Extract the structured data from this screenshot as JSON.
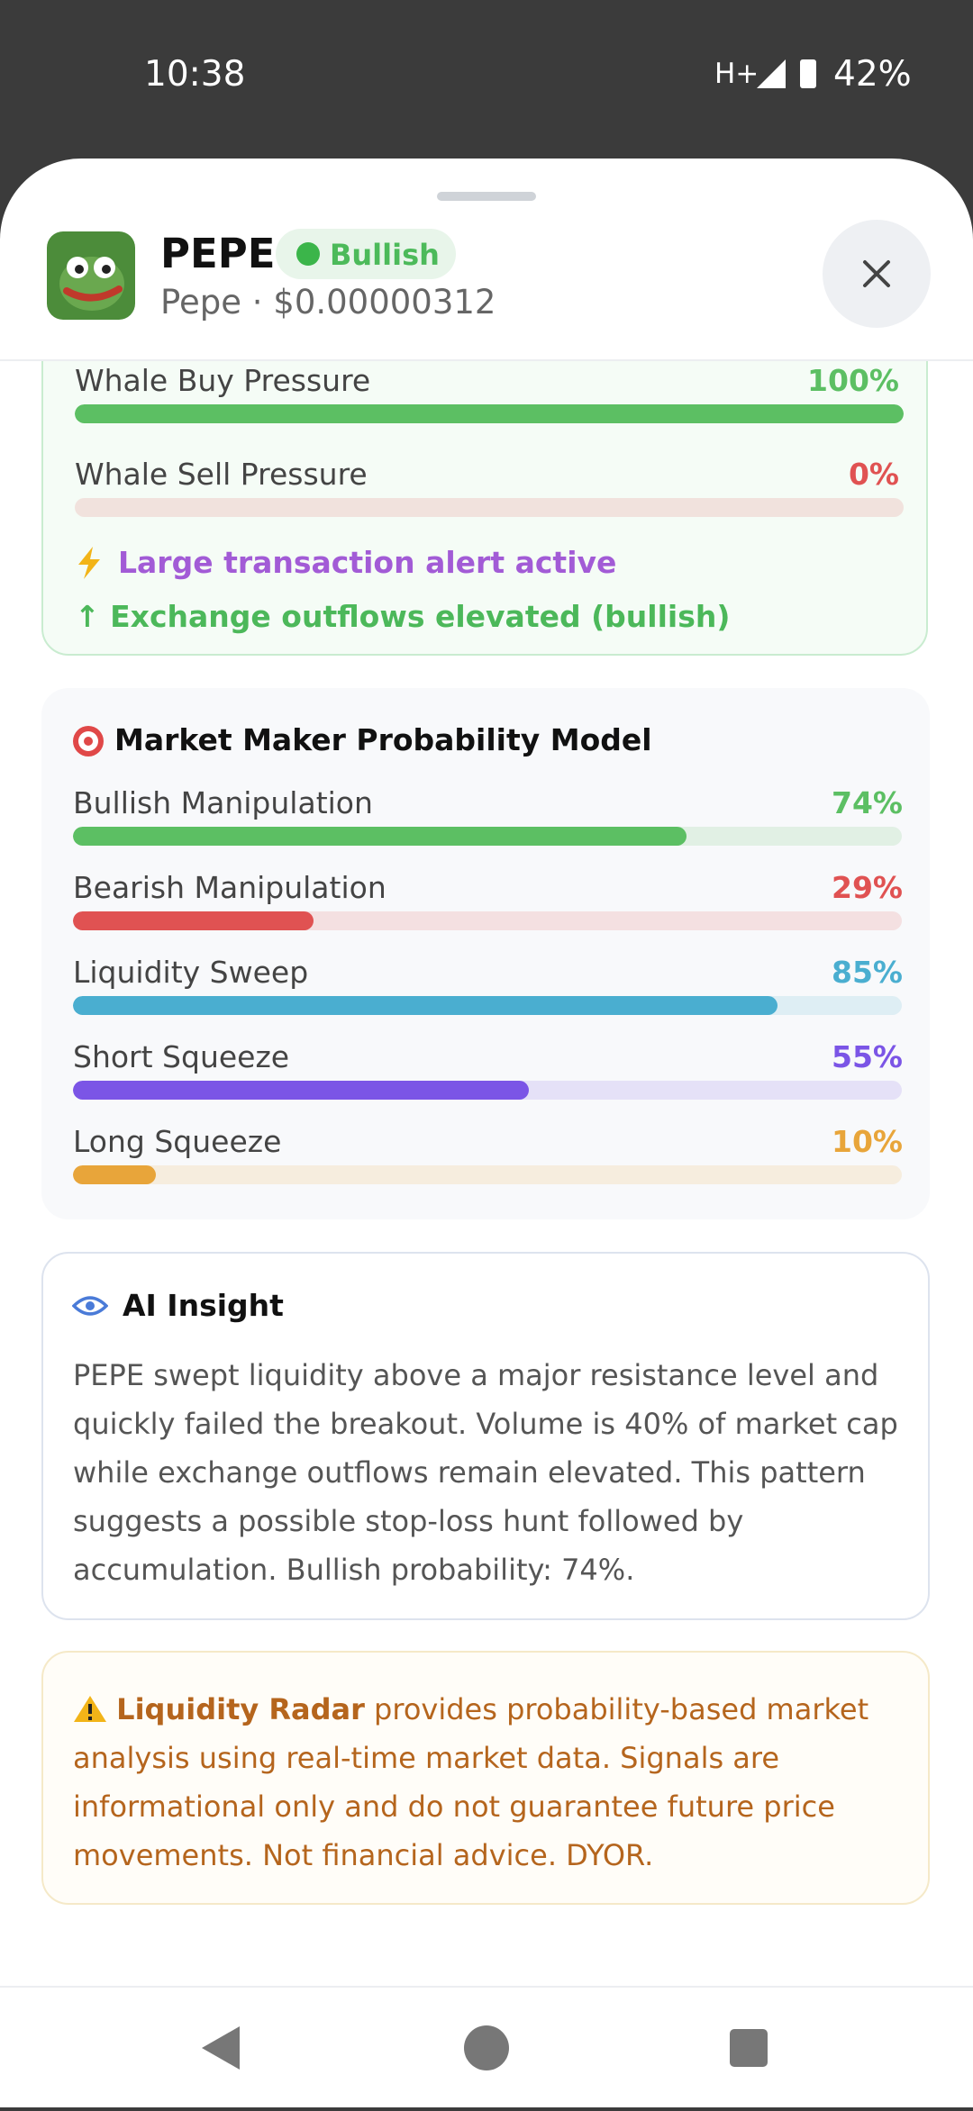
{
  "status_bar": {
    "time": "10:38",
    "network": "H+",
    "battery": "42%"
  },
  "header": {
    "symbol": "PEPE",
    "badge": "Bullish",
    "subtitle": "Pepe · $0.00000312"
  },
  "whale": {
    "xlim": [
      0,
      100
    ],
    "rows": [
      {
        "label": "Whale Buy Pressure",
        "value": 100,
        "value_label": "100%",
        "color": "#5cbf63"
      },
      {
        "label": "Whale Sell Pressure",
        "value": 0,
        "value_label": "0%",
        "color": "#e05252"
      }
    ],
    "alerts": [
      {
        "text": "Large transaction alert active",
        "color": "#a25bd6"
      },
      {
        "text": "↑ Exchange outflows elevated (bullish)",
        "color": "#4cb85a"
      }
    ]
  },
  "mm_model": {
    "title": "Market Maker Probability Model",
    "xlim": [
      0,
      100
    ],
    "rows": [
      {
        "label": "Bullish Manipulation",
        "value": 74,
        "value_label": "74%",
        "color": "#5cbf63"
      },
      {
        "label": "Bearish Manipulation",
        "value": 29,
        "value_label": "29%",
        "color": "#e05252"
      },
      {
        "label": "Liquidity Sweep",
        "value": 85,
        "value_label": "85%",
        "color": "#4aaed0"
      },
      {
        "label": "Short Squeeze",
        "value": 55,
        "value_label": "55%",
        "color": "#7b55e6"
      },
      {
        "label": "Long Squeeze",
        "value": 10,
        "value_label": "10%",
        "color": "#e8a53a"
      }
    ]
  },
  "ai_insight": {
    "title": "AI Insight",
    "body": "PEPE swept liquidity above a major resistance level and quickly failed the breakout. Volume is 40% of market cap while exchange outflows remain elevated. This pattern suggests a possible stop-loss hunt followed by accumulation. Bullish probability: 74%."
  },
  "disclaimer": {
    "brand": "Liquidity Radar",
    "text": "provides probability-based market analysis using real-time market data. Signals are informational only and do not guarantee future price movements. Not financial advice. DYOR."
  }
}
